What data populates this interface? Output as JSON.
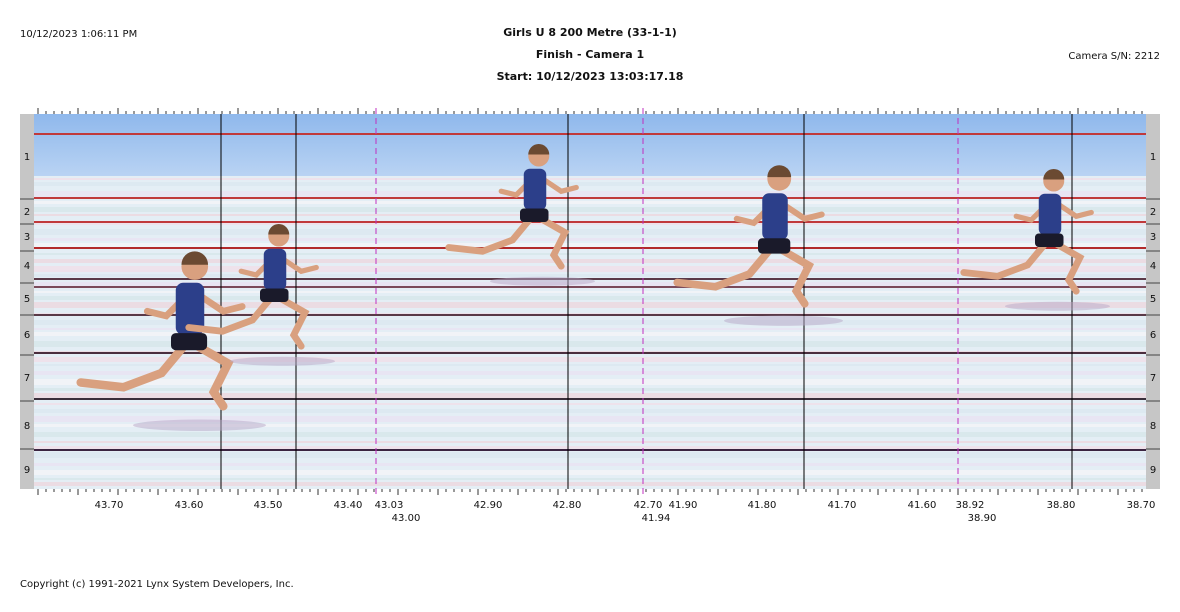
{
  "header": {
    "printed_at": "10/12/2023 1:06:11 PM",
    "title": "Girls U 8 200 Metre (33-1-1)",
    "subtitle": "Finish - Camera 1",
    "start": "Start: 10/12/2023 13:03:17.18",
    "camera": "Camera S/N: 2212"
  },
  "lanes": [
    "1",
    "2",
    "3",
    "4",
    "5",
    "6",
    "7",
    "8",
    "9"
  ],
  "time_scale": [
    "43.70",
    "43.60",
    "43.50",
    "43.40",
    "43.03",
    "43.00",
    "42.90",
    "42.80",
    "42.70",
    "41.94",
    "41.90",
    "41.80",
    "41.70",
    "41.60",
    "38.92",
    "38.90",
    "38.80",
    "38.70"
  ],
  "footer": "Copyright (c) 1991-2021 Lynx System Developers, Inc."
}
